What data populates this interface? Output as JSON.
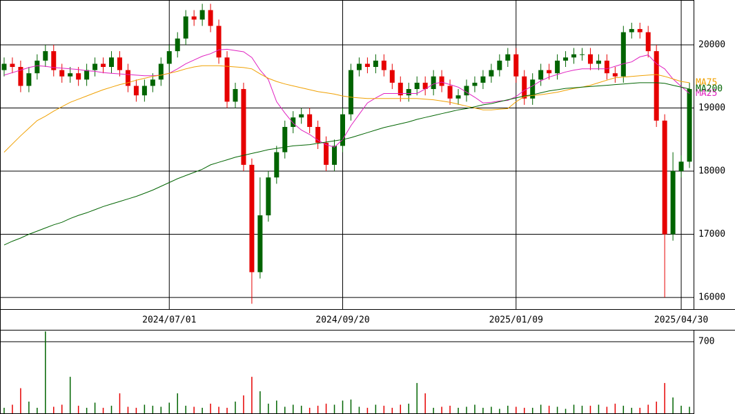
{
  "chart_data": [
    {
      "type": "candlestick",
      "categories": [
        null,
        null,
        null,
        null,
        null,
        null,
        null,
        null,
        null,
        null,
        null,
        null,
        null,
        null,
        null,
        null,
        null,
        null,
        null,
        null,
        "2024/07/01",
        null,
        null,
        null,
        null,
        null,
        null,
        null,
        null,
        null,
        null,
        null,
        null,
        null,
        null,
        null,
        null,
        null,
        null,
        null,
        null,
        "2024/09/20",
        null,
        null,
        null,
        null,
        null,
        null,
        null,
        null,
        null,
        null,
        null,
        null,
        null,
        null,
        null,
        null,
        null,
        null,
        null,
        null,
        "2025/01/09",
        null,
        null,
        null,
        null,
        null,
        null,
        null,
        null,
        null,
        null,
        null,
        null,
        null,
        null,
        null,
        null,
        null,
        null,
        null,
        "2025/04/30",
        null
      ],
      "open": [
        19600,
        19700,
        19650,
        19350,
        19550,
        19750,
        19900,
        19600,
        19500,
        19550,
        19450,
        19600,
        19700,
        19650,
        19800,
        19600,
        19350,
        19200,
        19350,
        19450,
        19700,
        19900,
        20100,
        20450,
        20400,
        20550,
        20300,
        19800,
        19100,
        19300,
        18100,
        16400,
        17300,
        17900,
        18300,
        18700,
        18850,
        18900,
        18700,
        18450,
        18100,
        18400,
        18900,
        19600,
        19700,
        19650,
        19750,
        19600,
        19400,
        19200,
        19300,
        19400,
        19300,
        19500,
        19350,
        19150,
        19200,
        19350,
        19400,
        19500,
        19600,
        19750,
        19850,
        19500,
        19150,
        19450,
        19600,
        19550,
        19750,
        19800,
        19850,
        19850,
        19700,
        19750,
        19550,
        19500,
        20200,
        20250,
        20200,
        19900,
        18800,
        17000,
        18000,
        18150
      ],
      "high": [
        19800,
        19800,
        19750,
        19650,
        19850,
        20000,
        20000,
        19700,
        19650,
        19650,
        19700,
        19800,
        19800,
        19900,
        19900,
        19700,
        19450,
        19450,
        19550,
        19800,
        20000,
        20200,
        20550,
        20550,
        20650,
        20650,
        20400,
        19900,
        19400,
        19400,
        18200,
        17900,
        18000,
        18400,
        18800,
        18950,
        19000,
        19000,
        18800,
        18550,
        18500,
        19000,
        19700,
        19800,
        19800,
        19850,
        19850,
        19700,
        19500,
        19400,
        19500,
        19500,
        19600,
        19600,
        19450,
        19300,
        19450,
        19500,
        19600,
        19700,
        19850,
        19950,
        19950,
        19600,
        19550,
        19700,
        19700,
        19850,
        19900,
        19950,
        19950,
        19950,
        19850,
        19850,
        19650,
        20300,
        20350,
        20350,
        20300,
        20000,
        18900,
        18300,
        18250,
        19400
      ],
      "low": [
        19500,
        19550,
        19250,
        19250,
        19450,
        19650,
        19500,
        19400,
        19400,
        19350,
        19350,
        19500,
        19550,
        19550,
        19500,
        19250,
        19100,
        19100,
        19250,
        19350,
        19600,
        19800,
        20000,
        20300,
        20300,
        20200,
        19700,
        19000,
        19000,
        18000,
        15900,
        16300,
        17200,
        17800,
        18200,
        18600,
        18750,
        18600,
        18350,
        18000,
        18000,
        18300,
        18800,
        19500,
        19550,
        19550,
        19500,
        19300,
        19100,
        19100,
        19200,
        19200,
        19200,
        19250,
        19050,
        19050,
        19100,
        19250,
        19300,
        19400,
        19500,
        19650,
        19400,
        19050,
        19050,
        19350,
        19450,
        19450,
        19650,
        19700,
        19750,
        19600,
        19600,
        19450,
        19400,
        19400,
        20100,
        20100,
        19800,
        18700,
        16000,
        16900,
        17900,
        18050
      ],
      "close": [
        19700,
        19650,
        19350,
        19550,
        19750,
        19900,
        19600,
        19500,
        19550,
        19450,
        19600,
        19700,
        19650,
        19800,
        19600,
        19350,
        19200,
        19350,
        19450,
        19700,
        19900,
        20100,
        20450,
        20400,
        20550,
        20300,
        19800,
        19100,
        19300,
        18100,
        16400,
        17300,
        17900,
        18300,
        18700,
        18850,
        18900,
        18700,
        18450,
        18100,
        18400,
        18900,
        19600,
        19700,
        19650,
        19750,
        19600,
        19400,
        19200,
        19300,
        19400,
        19300,
        19500,
        19350,
        19150,
        19200,
        19350,
        19400,
        19500,
        19600,
        19750,
        19850,
        19500,
        19150,
        19450,
        19600,
        19550,
        19750,
        19800,
        19850,
        19850,
        19700,
        19750,
        19550,
        19500,
        20200,
        20250,
        20200,
        19900,
        18800,
        17000,
        18000,
        18150,
        19300
      ],
      "up_color": "#006400",
      "down_color": "#e60000",
      "series": [
        {
          "name": "MA25",
          "color": "#e020c0",
          "values": [
            19520,
            19560,
            19600,
            19640,
            19670,
            19660,
            19640,
            19630,
            19620,
            19610,
            19590,
            19580,
            19560,
            19550,
            19540,
            19530,
            19520,
            19510,
            19510,
            19520,
            19550,
            19620,
            19700,
            19760,
            19820,
            19860,
            19920,
            19930,
            19910,
            19890,
            19800,
            19600,
            19450,
            19100,
            18920,
            18760,
            18650,
            18580,
            18490,
            18420,
            18380,
            18500,
            18720,
            18900,
            19080,
            19160,
            19230,
            19230,
            19230,
            19230,
            19230,
            19300,
            19380,
            19410,
            19370,
            19330,
            19250,
            19170,
            19080,
            19090,
            19110,
            19120,
            19180,
            19280,
            19350,
            19430,
            19490,
            19530,
            19570,
            19600,
            19620,
            19620,
            19620,
            19620,
            19660,
            19700,
            19730,
            19810,
            19840,
            19700,
            19620,
            19460,
            19340,
            19230
          ]
        },
        {
          "name": "MA75",
          "color": "#f0a000",
          "values": [
            18300,
            18430,
            18560,
            18680,
            18800,
            18870,
            18950,
            19020,
            19090,
            19140,
            19190,
            19240,
            19290,
            19330,
            19370,
            19400,
            19440,
            19470,
            19500,
            19520,
            19550,
            19580,
            19620,
            19650,
            19670,
            19670,
            19670,
            19660,
            19650,
            19640,
            19620,
            19540,
            19470,
            19420,
            19380,
            19350,
            19320,
            19290,
            19260,
            19240,
            19220,
            19190,
            19170,
            19160,
            19150,
            19150,
            19150,
            19150,
            19150,
            19150,
            19150,
            19140,
            19130,
            19110,
            19090,
            19060,
            19030,
            19000,
            18970,
            18970,
            18980,
            18990,
            19100,
            19180,
            19200,
            19210,
            19230,
            19250,
            19280,
            19310,
            19330,
            19360,
            19400,
            19440,
            19480,
            19490,
            19500,
            19510,
            19520,
            19530,
            19500,
            19460,
            19420,
            19400
          ]
        },
        {
          "name": "MA200",
          "color": "#006400",
          "values": [
            16830,
            16890,
            16940,
            17000,
            17050,
            17100,
            17150,
            17190,
            17250,
            17300,
            17340,
            17390,
            17440,
            17480,
            17520,
            17560,
            17600,
            17650,
            17700,
            17760,
            17820,
            17880,
            17930,
            17980,
            18030,
            18100,
            18140,
            18180,
            18220,
            18250,
            18280,
            18310,
            18340,
            18360,
            18380,
            18400,
            18410,
            18420,
            18440,
            18460,
            18480,
            18500,
            18530,
            18570,
            18610,
            18650,
            18690,
            18720,
            18750,
            18780,
            18820,
            18850,
            18880,
            18910,
            18940,
            18970,
            18990,
            19020,
            19050,
            19070,
            19100,
            19130,
            19160,
            19190,
            19210,
            19240,
            19270,
            19290,
            19310,
            19320,
            19330,
            19340,
            19350,
            19360,
            19370,
            19380,
            19390,
            19400,
            19400,
            19400,
            19390,
            19360,
            19330,
            19300
          ]
        }
      ],
      "ylim": [
        15815,
        20710
      ],
      "yticks": [
        16000,
        17000,
        18000,
        19000,
        20000
      ],
      "grid": true
    },
    {
      "type": "bar",
      "values": [
        60,
        90,
        250,
        120,
        60,
        800,
        70,
        90,
        360,
        80,
        60,
        110,
        60,
        80,
        200,
        70,
        60,
        90,
        80,
        70,
        110,
        200,
        80,
        70,
        60,
        100,
        70,
        60,
        120,
        180,
        360,
        220,
        100,
        130,
        70,
        90,
        80,
        60,
        80,
        100,
        90,
        130,
        140,
        70,
        60,
        90,
        80,
        60,
        90,
        100,
        300,
        200,
        60,
        70,
        80,
        60,
        70,
        90,
        60,
        70,
        50,
        80,
        70,
        60,
        60,
        90,
        80,
        70,
        50,
        90,
        80,
        80,
        90,
        70,
        100,
        80,
        60,
        60,
        90,
        120,
        300,
        160,
        80,
        70
      ],
      "ylim": [
        0,
        815
      ],
      "yticks": [
        700
      ],
      "grid": true
    }
  ]
}
